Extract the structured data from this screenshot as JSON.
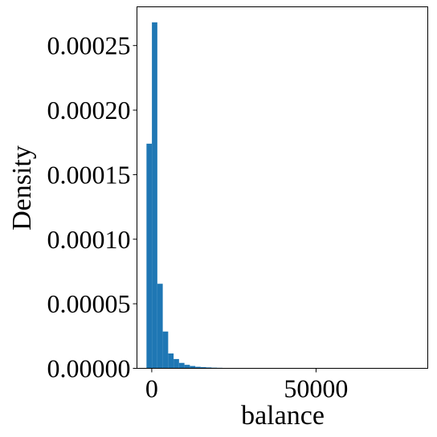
{
  "chart_data": {
    "type": "bar",
    "xlabel": "balance",
    "ylabel": "Density",
    "xlim": [
      -4500,
      84000
    ],
    "ylim": [
      0,
      0.00028
    ],
    "grid": false,
    "x_ticks": [
      {
        "value": 0,
        "label": "0"
      },
      {
        "value": 50000,
        "label": "50000"
      }
    ],
    "y_ticks": [
      {
        "value": 0,
        "label": "0.00000"
      },
      {
        "value": 5e-05,
        "label": "0.00005"
      },
      {
        "value": 0.0001,
        "label": "0.00010"
      },
      {
        "value": 0.00015,
        "label": "0.00015"
      },
      {
        "value": 0.0002,
        "label": "0.00020"
      },
      {
        "value": 0.00025,
        "label": "0.00025"
      }
    ],
    "bin_start": -1600,
    "bin_width": 1650,
    "values": [
      0.000174,
      0.000268,
      6.55e-05,
      2.85e-05,
      1.15e-05,
      7.2e-06,
      4.2e-06,
      2.7e-06,
      1.8e-06,
      1.2e-06,
      9e-07,
      7e-07,
      5e-07,
      4e-07,
      3e-07,
      3e-07,
      2e-07,
      2e-07,
      2e-07,
      2e-07,
      2e-07,
      1e-07,
      1e-07,
      1e-07,
      1e-07,
      1e-07,
      1e-07,
      1e-07,
      1e-07,
      1e-07,
      1e-07,
      1e-07,
      1e-07,
      1e-07,
      1e-07,
      1e-07,
      1e-07,
      3e-07,
      1e-07
    ],
    "bar_color": "#1f77b4"
  }
}
